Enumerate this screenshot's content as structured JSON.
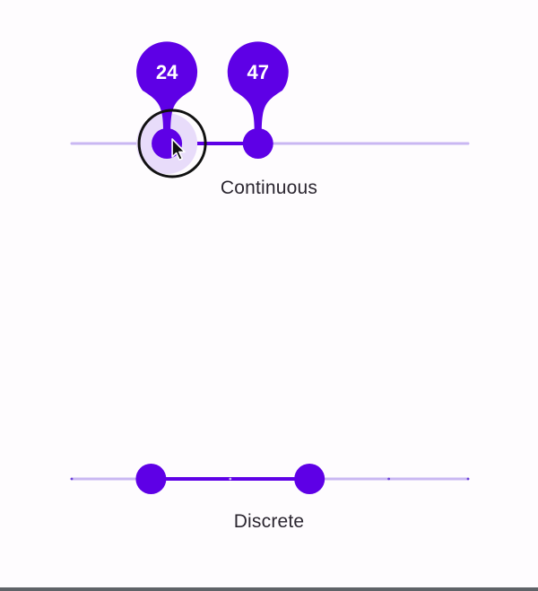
{
  "sliders": {
    "continuous": {
      "label": "Continuous",
      "min": 0,
      "max": 100,
      "start_value": 24,
      "end_value": 47,
      "start_display": "24",
      "end_display": "47"
    },
    "discrete": {
      "label": "Discrete",
      "min": 0,
      "max": 100,
      "divisions": 5,
      "start_value": 20,
      "end_value": 60
    }
  },
  "colors": {
    "active": "#5e00e6",
    "inactive_track": "#c9b7f2",
    "hover_halo": "#e8dcfa",
    "tick": "#6a3fd8"
  },
  "cursor": {
    "icon": "arrow-pointer-icon",
    "over": "continuous-start-thumb"
  }
}
